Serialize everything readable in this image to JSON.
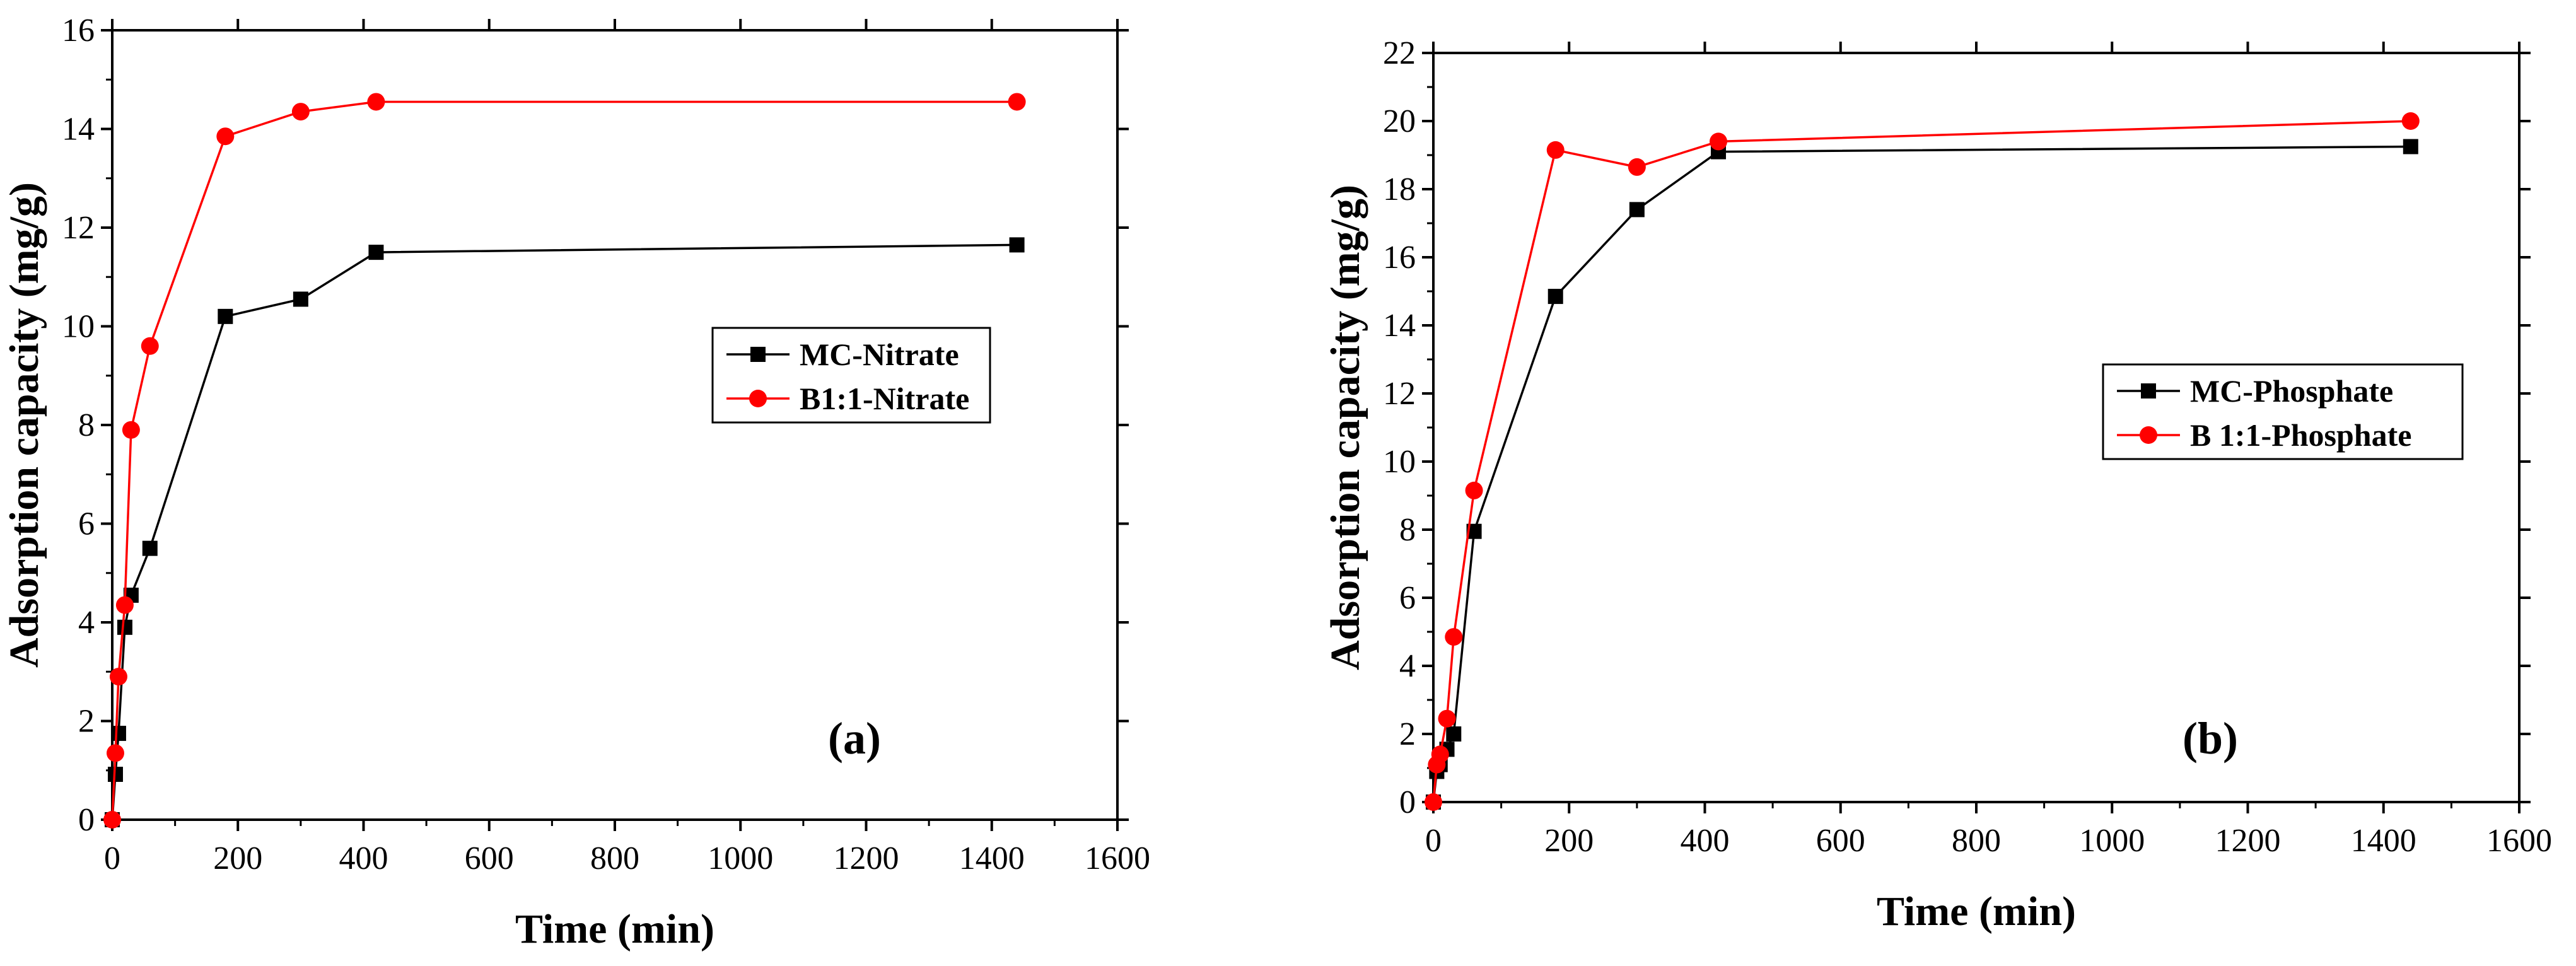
{
  "chart_data": [
    {
      "type": "line",
      "panel_label": "(a)",
      "xlabel": "Time (min)",
      "ylabel": "Adsorption capacity (mg/g)",
      "xlim": [
        0,
        1600
      ],
      "ylim": [
        0,
        16
      ],
      "xticks": [
        0,
        200,
        400,
        600,
        800,
        1000,
        1200,
        1400,
        1600
      ],
      "yticks": [
        0,
        2,
        4,
        6,
        8,
        10,
        12,
        14,
        16
      ],
      "xtick_labels": [
        "0",
        "200",
        "400",
        "600",
        "800",
        "1000",
        "1200",
        "1400",
        "1600"
      ],
      "ytick_labels": [
        "0",
        "2",
        "4",
        "6",
        "8",
        "10",
        "12",
        "14",
        "16"
      ],
      "legend_position": "center-right",
      "series": [
        {
          "name": "MC-Nitrate",
          "marker": "square",
          "color": "#000000",
          "x": [
            0,
            5,
            10,
            20,
            30,
            60,
            180,
            300,
            420,
            1440
          ],
          "y": [
            0,
            0.92,
            1.75,
            3.9,
            4.55,
            5.5,
            10.2,
            10.55,
            11.5,
            11.65
          ]
        },
        {
          "name": "B1:1-Nitrate",
          "marker": "circle",
          "color": "#ff0000",
          "x": [
            0,
            5,
            10,
            20,
            30,
            60,
            180,
            300,
            420,
            1440
          ],
          "y": [
            0,
            1.35,
            2.9,
            4.35,
            7.9,
            9.6,
            13.85,
            14.35,
            14.55,
            14.55
          ]
        }
      ]
    },
    {
      "type": "line",
      "panel_label": "(b)",
      "xlabel": "Time (min)",
      "ylabel": "Adsorption capacity (mg/g)",
      "xlim": [
        0,
        1600
      ],
      "ylim": [
        0,
        22
      ],
      "xticks": [
        0,
        200,
        400,
        600,
        800,
        1000,
        1200,
        1400,
        1600
      ],
      "yticks": [
        0,
        2,
        4,
        6,
        8,
        10,
        12,
        14,
        16,
        18,
        20,
        22
      ],
      "xtick_labels": [
        "0",
        "200",
        "400",
        "600",
        "800",
        "1000",
        "1200",
        "1400",
        "1600"
      ],
      "ytick_labels": [
        "0",
        "2",
        "4",
        "6",
        "8",
        "10",
        "12",
        "14",
        "16",
        "18",
        "20",
        "22"
      ],
      "legend_position": "center-right",
      "series": [
        {
          "name": "MC-Phosphate",
          "marker": "square",
          "color": "#000000",
          "x": [
            0,
            5,
            10,
            20,
            30,
            60,
            180,
            300,
            420,
            1440
          ],
          "y": [
            0,
            0.9,
            1.1,
            1.55,
            2.0,
            7.95,
            14.85,
            17.4,
            19.1,
            19.25
          ]
        },
        {
          "name": "B 1:1-Phosphate",
          "marker": "circle",
          "color": "#ff0000",
          "x": [
            0,
            5,
            10,
            20,
            30,
            60,
            180,
            300,
            420,
            1440
          ],
          "y": [
            0,
            1.1,
            1.4,
            2.45,
            4.85,
            9.15,
            19.15,
            18.65,
            19.4,
            20.0
          ]
        }
      ]
    }
  ]
}
